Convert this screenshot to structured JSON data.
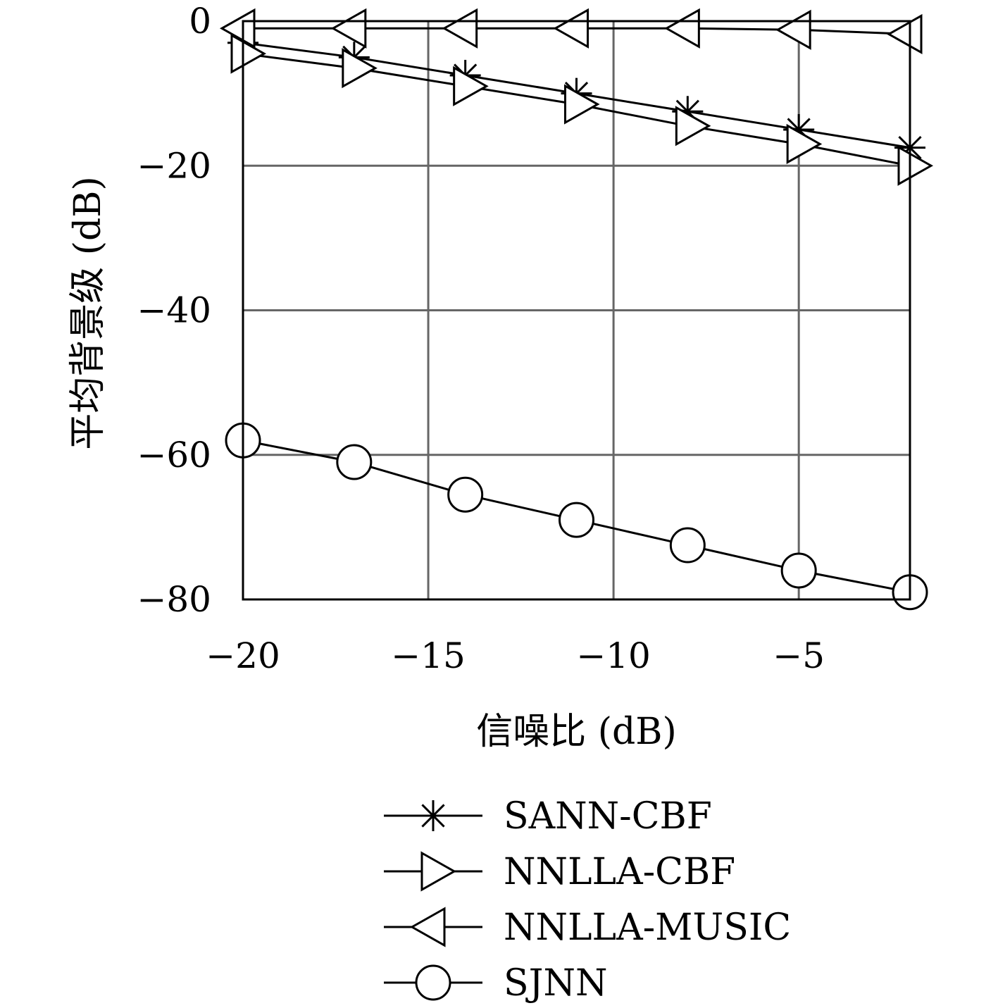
{
  "chart_data": {
    "type": "line",
    "title": "",
    "xlabel": "信噪比 (dB)",
    "ylabel": "平均背景级 (dB)",
    "xlim": [
      -20,
      -2
    ],
    "ylim": [
      -80,
      0
    ],
    "xticks": [
      -20,
      -15,
      -10,
      -5
    ],
    "xtick_labels": [
      "−20",
      "−15",
      "−10",
      "−5"
    ],
    "yticks": [
      0,
      -20,
      -40,
      -60,
      -80
    ],
    "ytick_labels": [
      "0",
      "−20",
      "−40",
      "−60",
      "−80"
    ],
    "grid": true,
    "legend_position": "below",
    "x": [
      -20,
      -17,
      -14,
      -11,
      -8,
      -5,
      -2
    ],
    "series": [
      {
        "name": "SANN-CBF",
        "marker": "asterisk",
        "values": [
          -3,
          -5,
          -7.5,
          -10,
          -12.5,
          -15,
          -17.5
        ]
      },
      {
        "name": "NNLLA-CBF",
        "marker": "triangle-right",
        "values": [
          -4.5,
          -6.5,
          -9,
          -11.5,
          -14.5,
          -17,
          -20
        ]
      },
      {
        "name": "NNLLA-MUSIC",
        "marker": "triangle-left",
        "values": [
          -1,
          -1,
          -1,
          -1,
          -1,
          -1.2,
          -1.8
        ]
      },
      {
        "name": "SJNN",
        "marker": "circle",
        "values": [
          -58,
          -61,
          -65.5,
          -69,
          -72.5,
          -76,
          -79
        ]
      }
    ],
    "colors": {
      "line": "#000000",
      "grid": "#666666",
      "axes": "#000000"
    }
  }
}
